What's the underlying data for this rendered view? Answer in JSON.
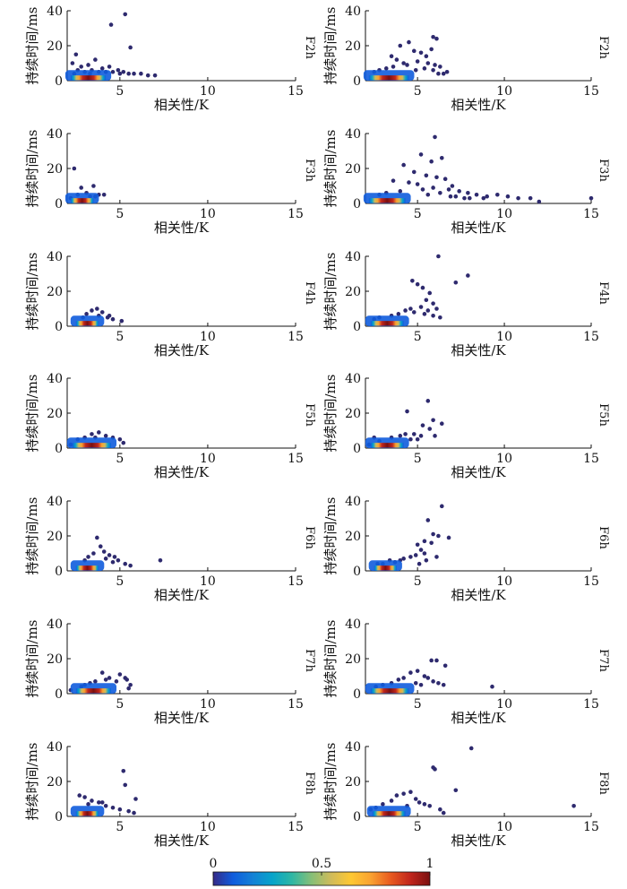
{
  "figure": {
    "colorbar": {
      "ticks": [
        "0",
        "0.5",
        "1"
      ],
      "colormap": [
        "#352a87",
        "#0f5cdd",
        "#1481d6",
        "#06a4ca",
        "#2eb7a4",
        "#87bf77",
        "#d1bb59",
        "#fec832",
        "#f9a231",
        "#e85a1f",
        "#c1261c",
        "#7a1010"
      ]
    },
    "point_color": "#2e2a6e"
  },
  "chart_data": {
    "type": "scatter",
    "xlabel": "相关性/K",
    "ylabel": "持续时间/ms",
    "xlim": [
      2,
      15
    ],
    "ylim": [
      0,
      40
    ],
    "xticks": [
      "5",
      "10",
      "15"
    ],
    "yticks": [
      "0",
      "20",
      "40"
    ],
    "grid": false,
    "panels": [
      {
        "row_label": "F2h",
        "side": "left",
        "core_x": [
          2.2,
          4.2
        ],
        "core_y_max": 3,
        "points": [
          [
            4.5,
            32
          ],
          [
            5.3,
            38
          ],
          [
            5.6,
            19
          ],
          [
            2.5,
            15
          ],
          [
            2.3,
            10
          ],
          [
            2.8,
            8
          ],
          [
            3.2,
            9
          ],
          [
            3.6,
            12
          ],
          [
            4.0,
            7
          ],
          [
            4.4,
            8
          ],
          [
            4.9,
            6
          ],
          [
            5.2,
            5
          ],
          [
            5.8,
            4
          ],
          [
            6.2,
            4
          ],
          [
            6.6,
            3
          ],
          [
            7.0,
            3
          ],
          [
            2.6,
            6
          ],
          [
            3.0,
            5
          ],
          [
            3.4,
            6
          ],
          [
            3.8,
            5
          ],
          [
            4.2,
            5
          ],
          [
            4.6,
            5
          ],
          [
            5.0,
            4
          ],
          [
            5.5,
            4
          ],
          [
            2.4,
            4
          ],
          [
            3.3,
            4
          ]
        ]
      },
      {
        "row_label": "F2h",
        "side": "right",
        "core_x": [
          2.2,
          4.5
        ],
        "core_y_max": 3,
        "points": [
          [
            5.9,
            25
          ],
          [
            6.1,
            24
          ],
          [
            5.8,
            18
          ],
          [
            4.0,
            20
          ],
          [
            4.5,
            22
          ],
          [
            4.8,
            17
          ],
          [
            5.2,
            16
          ],
          [
            5.5,
            14
          ],
          [
            3.5,
            14
          ],
          [
            3.8,
            12
          ],
          [
            4.2,
            10
          ],
          [
            5.0,
            11
          ],
          [
            5.6,
            10
          ],
          [
            6.0,
            9
          ],
          [
            6.3,
            8
          ],
          [
            6.7,
            5
          ],
          [
            6.5,
            4
          ],
          [
            3.2,
            7
          ],
          [
            2.8,
            6
          ],
          [
            2.5,
            5
          ],
          [
            3.6,
            8
          ],
          [
            4.4,
            9
          ],
          [
            5.4,
            7
          ],
          [
            5.9,
            6
          ],
          [
            4.9,
            6
          ],
          [
            6.2,
            4
          ]
        ]
      },
      {
        "row_label": "F3h",
        "side": "left",
        "core_x": [
          2.2,
          3.5
        ],
        "core_y_max": 3,
        "points": [
          [
            2.4,
            20
          ],
          [
            2.8,
            9
          ],
          [
            3.1,
            6
          ],
          [
            3.5,
            10
          ],
          [
            3.8,
            5
          ],
          [
            4.1,
            5
          ],
          [
            2.6,
            5
          ],
          [
            3.3,
            4
          ],
          [
            2.2,
            3
          ],
          [
            3.6,
            4
          ]
        ]
      },
      {
        "row_label": "F3h",
        "side": "right",
        "core_x": [
          2.2,
          4.3
        ],
        "core_y_max": 3,
        "points": [
          [
            6.0,
            38
          ],
          [
            5.2,
            28
          ],
          [
            5.8,
            24
          ],
          [
            6.4,
            26
          ],
          [
            4.2,
            22
          ],
          [
            4.8,
            18
          ],
          [
            5.5,
            16
          ],
          [
            6.1,
            15
          ],
          [
            6.6,
            14
          ],
          [
            7.0,
            10
          ],
          [
            3.6,
            13
          ],
          [
            4.5,
            12
          ],
          [
            5.0,
            11
          ],
          [
            6.8,
            8
          ],
          [
            7.4,
            7
          ],
          [
            7.9,
            6
          ],
          [
            8.4,
            5
          ],
          [
            9.0,
            4
          ],
          [
            9.6,
            5
          ],
          [
            10.2,
            4
          ],
          [
            10.8,
            3
          ],
          [
            11.5,
            3
          ],
          [
            12.0,
            1
          ],
          [
            15.0,
            3
          ],
          [
            7.2,
            4
          ],
          [
            8.0,
            3
          ],
          [
            8.8,
            3
          ],
          [
            5.3,
            8
          ],
          [
            5.9,
            9
          ],
          [
            6.3,
            6
          ],
          [
            4.0,
            7
          ],
          [
            3.2,
            6
          ],
          [
            2.8,
            5
          ],
          [
            5.6,
            5
          ],
          [
            6.9,
            4
          ],
          [
            7.7,
            3
          ]
        ]
      },
      {
        "row_label": "F4h",
        "side": "left",
        "core_x": [
          2.5,
          3.8
        ],
        "core_y_max": 3,
        "points": [
          [
            3.4,
            9
          ],
          [
            3.7,
            10
          ],
          [
            4.0,
            8
          ],
          [
            3.1,
            7
          ],
          [
            3.8,
            6
          ],
          [
            4.3,
            5
          ],
          [
            4.6,
            4
          ],
          [
            5.1,
            3
          ],
          [
            2.9,
            5
          ],
          [
            4.4,
            6
          ]
        ]
      },
      {
        "row_label": "F4h",
        "side": "right",
        "core_x": [
          2.3,
          4.2
        ],
        "core_y_max": 3,
        "points": [
          [
            6.2,
            40
          ],
          [
            7.9,
            29
          ],
          [
            7.2,
            25
          ],
          [
            4.7,
            26
          ],
          [
            5.0,
            24
          ],
          [
            5.3,
            22
          ],
          [
            5.7,
            19
          ],
          [
            5.5,
            15
          ],
          [
            5.9,
            13
          ],
          [
            6.1,
            10
          ],
          [
            5.6,
            9
          ],
          [
            5.2,
            11
          ],
          [
            4.6,
            10
          ],
          [
            4.8,
            8
          ],
          [
            4.3,
            9
          ],
          [
            3.9,
            7
          ],
          [
            3.5,
            6
          ],
          [
            2.8,
            5
          ],
          [
            2.5,
            4
          ],
          [
            5.4,
            7
          ],
          [
            5.9,
            6
          ],
          [
            6.3,
            5
          ]
        ]
      },
      {
        "row_label": "F5h",
        "side": "left",
        "core_x": [
          2.3,
          4.5
        ],
        "core_y_max": 3,
        "points": [
          [
            3.4,
            8
          ],
          [
            3.8,
            9
          ],
          [
            4.2,
            7
          ],
          [
            4.6,
            6
          ],
          [
            5.0,
            5
          ],
          [
            5.2,
            3
          ],
          [
            2.6,
            5
          ],
          [
            3.0,
            6
          ],
          [
            2.2,
            2
          ],
          [
            3.6,
            6
          ]
        ]
      },
      {
        "row_label": "F5h",
        "side": "right",
        "core_x": [
          2.3,
          4.2
        ],
        "core_y_max": 3,
        "points": [
          [
            5.6,
            27
          ],
          [
            4.4,
            21
          ],
          [
            5.9,
            16
          ],
          [
            6.4,
            14
          ],
          [
            5.3,
            13
          ],
          [
            5.7,
            11
          ],
          [
            4.8,
            8
          ],
          [
            4.3,
            8
          ],
          [
            5.2,
            7
          ],
          [
            6.0,
            7
          ],
          [
            3.5,
            6
          ],
          [
            4.0,
            7
          ],
          [
            2.5,
            6
          ],
          [
            2.8,
            4
          ],
          [
            4.6,
            5
          ],
          [
            5.0,
            5
          ],
          [
            2.2,
            2
          ]
        ]
      },
      {
        "row_label": "F6h",
        "side": "left",
        "core_x": [
          2.5,
          3.8
        ],
        "core_y_max": 3,
        "points": [
          [
            3.7,
            19
          ],
          [
            3.9,
            14
          ],
          [
            4.1,
            11
          ],
          [
            3.5,
            10
          ],
          [
            4.4,
            9
          ],
          [
            4.7,
            8
          ],
          [
            4.9,
            6
          ],
          [
            5.3,
            4
          ],
          [
            5.6,
            3
          ],
          [
            7.3,
            6
          ],
          [
            3.2,
            8
          ],
          [
            4.2,
            7
          ],
          [
            3.0,
            6
          ],
          [
            4.6,
            5
          ]
        ]
      },
      {
        "row_label": "F6h",
        "side": "right",
        "core_x": [
          2.5,
          3.8
        ],
        "core_y_max": 3,
        "points": [
          [
            6.4,
            37
          ],
          [
            5.6,
            29
          ],
          [
            5.9,
            21
          ],
          [
            6.2,
            20
          ],
          [
            6.8,
            19
          ],
          [
            5.4,
            17
          ],
          [
            5.8,
            16
          ],
          [
            5.0,
            15
          ],
          [
            5.2,
            12
          ],
          [
            5.4,
            10
          ],
          [
            4.9,
            9
          ],
          [
            4.6,
            8
          ],
          [
            4.2,
            7
          ],
          [
            4.0,
            6
          ],
          [
            3.7,
            5
          ],
          [
            3.4,
            6
          ],
          [
            3.0,
            4
          ],
          [
            2.7,
            4
          ],
          [
            5.1,
            4
          ],
          [
            5.5,
            6
          ],
          [
            6.1,
            8
          ]
        ]
      },
      {
        "row_label": "F7h",
        "side": "left",
        "core_x": [
          2.5,
          4.5
        ],
        "core_y_max": 3,
        "points": [
          [
            4.0,
            12
          ],
          [
            4.4,
            9
          ],
          [
            5.0,
            11
          ],
          [
            5.3,
            9
          ],
          [
            5.4,
            8
          ],
          [
            4.8,
            7
          ],
          [
            4.2,
            8
          ],
          [
            3.6,
            7
          ],
          [
            3.3,
            6
          ],
          [
            3.0,
            5
          ],
          [
            2.8,
            4
          ],
          [
            5.6,
            5
          ],
          [
            5.5,
            3
          ],
          [
            2.2,
            2
          ]
        ]
      },
      {
        "row_label": "F7h",
        "side": "right",
        "core_x": [
          2.3,
          4.5
        ],
        "core_y_max": 3,
        "points": [
          [
            5.8,
            19
          ],
          [
            6.1,
            19
          ],
          [
            6.6,
            16
          ],
          [
            5.0,
            13
          ],
          [
            4.6,
            12
          ],
          [
            5.4,
            10
          ],
          [
            5.6,
            9
          ],
          [
            4.2,
            9
          ],
          [
            3.9,
            8
          ],
          [
            5.9,
            7
          ],
          [
            6.2,
            6
          ],
          [
            6.5,
            5
          ],
          [
            4.9,
            6
          ],
          [
            3.5,
            6
          ],
          [
            3.0,
            5
          ],
          [
            2.6,
            4
          ],
          [
            9.3,
            4
          ],
          [
            5.2,
            5
          ]
        ]
      },
      {
        "row_label": "F8h",
        "side": "left",
        "core_x": [
          2.5,
          3.8
        ],
        "core_y_max": 3,
        "points": [
          [
            5.2,
            26
          ],
          [
            5.3,
            18
          ],
          [
            5.9,
            10
          ],
          [
            2.7,
            12
          ],
          [
            3.0,
            11
          ],
          [
            3.4,
            9
          ],
          [
            3.8,
            8
          ],
          [
            4.2,
            6
          ],
          [
            4.6,
            5
          ],
          [
            5.0,
            4
          ],
          [
            5.5,
            3
          ],
          [
            5.8,
            2
          ],
          [
            3.2,
            7
          ],
          [
            4.0,
            8
          ]
        ]
      },
      {
        "row_label": "F8h",
        "side": "right",
        "core_x": [
          2.4,
          4.3
        ],
        "core_y_max": 3,
        "points": [
          [
            8.1,
            39
          ],
          [
            5.9,
            28
          ],
          [
            6.0,
            27
          ],
          [
            7.2,
            15
          ],
          [
            4.6,
            14
          ],
          [
            4.2,
            13
          ],
          [
            4.9,
            10
          ],
          [
            3.8,
            12
          ],
          [
            3.5,
            9
          ],
          [
            5.1,
            8
          ],
          [
            5.4,
            7
          ],
          [
            5.7,
            6
          ],
          [
            6.3,
            4
          ],
          [
            3.0,
            7
          ],
          [
            2.6,
            5
          ],
          [
            2.3,
            4
          ],
          [
            14.0,
            6
          ],
          [
            6.5,
            2
          ],
          [
            4.4,
            6
          ]
        ]
      }
    ]
  }
}
